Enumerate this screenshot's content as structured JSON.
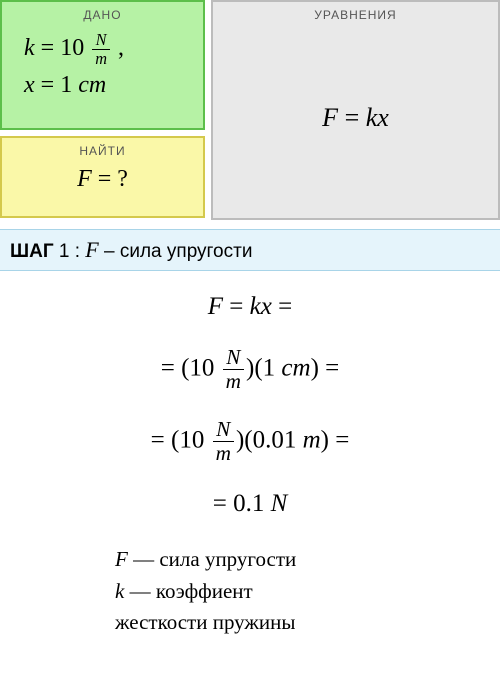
{
  "given": {
    "header": "ДАНО",
    "bg_color": "#b6f2a5",
    "border_color": "#5cbf4a",
    "k_var": "k",
    "k_eq": " = 10 ",
    "k_unit_num": "N",
    "k_unit_den": "m",
    "k_comma": " ,",
    "x_var": "x",
    "x_val": " = 1 ",
    "x_unit": "cm"
  },
  "find": {
    "header": "НАЙТИ",
    "bg_color": "#faf8a8",
    "border_color": "#d4c94c",
    "var": "F",
    "eq": " = ?"
  },
  "equations": {
    "header": "УРАВНЕНИЯ",
    "bg_color": "#e9e9e9",
    "border_color": "#bcbcbc",
    "formula_l": "F",
    "formula_eq": " = ",
    "formula_r": "kx"
  },
  "step": {
    "label": "ШАГ",
    "num": " 1 : ",
    "var": "F",
    "desc": " – сила упругости"
  },
  "solution": {
    "line1_a": "F",
    "line1_b": " = ",
    "line1_c": "kx",
    "line1_d": " =",
    "line2_a": "= (10 ",
    "line2_num": "N",
    "line2_den": "m",
    "line2_b": ")(1 ",
    "line2_c": "cm",
    "line2_d": ") =",
    "line3_a": "= (10 ",
    "line3_num": "N",
    "line3_den": "m",
    "line3_b": ")(0.01 ",
    "line3_c": "m",
    "line3_d": ") =",
    "line4_a": "= 0.1 ",
    "line4_b": "N"
  },
  "legend": {
    "f_var": "F",
    "f_desc": " — сила упругости",
    "k_var": "k",
    "k_desc": " — коэффиент",
    "k_desc2": "жесткости пружины"
  }
}
